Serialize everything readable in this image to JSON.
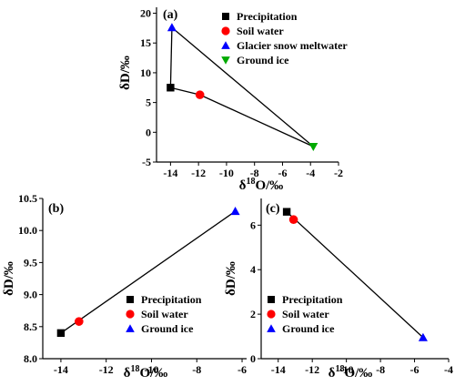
{
  "chart_data": [
    {
      "panel_label": "(a)",
      "type": "scatter",
      "xlabel_main": "δ",
      "xlabel_sup": "18",
      "xlabel_rest": "O/‰",
      "ylabel": "δD/‰",
      "xlim": [
        -15,
        -2
      ],
      "ylim": [
        -5,
        21
      ],
      "xticks": [
        -14,
        -12,
        -10,
        -8,
        -6,
        -4,
        -2
      ],
      "yticks": [
        -5,
        0,
        5,
        10,
        15,
        20
      ],
      "legend_position": "top-right",
      "series": [
        {
          "name": "Precipitation",
          "marker": "square",
          "color": "#000000",
          "x": -14.0,
          "y": 7.5
        },
        {
          "name": "Soil water",
          "marker": "circle",
          "color": "#ff0000",
          "x": -11.9,
          "y": 6.3
        },
        {
          "name": "Glacier snow meltwater",
          "marker": "triangle-up",
          "color": "#0000ff",
          "x": -13.9,
          "y": 17.6
        },
        {
          "name": "Ground ice",
          "marker": "triangle-down",
          "color": "#00aa00",
          "x": -3.8,
          "y": -2.4
        }
      ],
      "lines": [
        [
          [
            -14.0,
            7.5
          ],
          [
            -13.9,
            17.6
          ]
        ],
        [
          [
            -13.9,
            17.6
          ],
          [
            -3.8,
            -2.4
          ]
        ],
        [
          [
            -14.0,
            7.5
          ],
          [
            -11.9,
            6.3
          ],
          [
            -3.8,
            -2.4
          ]
        ]
      ]
    },
    {
      "panel_label": "(b)",
      "type": "scatter",
      "xlabel_main": "δ",
      "xlabel_sup": "18",
      "xlabel_rest": "O/‰",
      "ylabel": "δD/‰",
      "xlim": [
        -14.8,
        -5.8
      ],
      "ylim": [
        8.0,
        10.5
      ],
      "xticks": [
        -14,
        -12,
        -10,
        -8,
        -6
      ],
      "yticks": [
        8.0,
        8.5,
        9.0,
        9.5,
        10.0,
        10.5
      ],
      "ytick_decimals": 1,
      "legend_position": "bottom-right",
      "series": [
        {
          "name": "Precipitation",
          "marker": "square",
          "color": "#000000",
          "x": -14.0,
          "y": 8.4
        },
        {
          "name": "Soil water",
          "marker": "circle",
          "color": "#ff0000",
          "x": -13.2,
          "y": 8.58
        },
        {
          "name": "Ground ice",
          "marker": "triangle-up",
          "color": "#0000ff",
          "x": -6.3,
          "y": 10.3
        }
      ],
      "lines": [
        [
          [
            -14.0,
            8.4
          ],
          [
            -6.3,
            10.3
          ]
        ]
      ]
    },
    {
      "panel_label": "(c)",
      "type": "scatter",
      "xlabel_main": "δ",
      "xlabel_sup": "18",
      "xlabel_rest": "O/‰",
      "ylabel": "δD/‰",
      "xlim": [
        -15,
        -4
      ],
      "ylim": [
        0,
        7.2
      ],
      "xticks": [
        -14,
        -12,
        -10,
        -8,
        -6,
        -4
      ],
      "yticks": [
        0,
        2,
        4,
        6
      ],
      "legend_position": "bottom-left",
      "series": [
        {
          "name": "Precipitation",
          "marker": "square",
          "color": "#000000",
          "x": -13.5,
          "y": 6.6
        },
        {
          "name": "Soil water",
          "marker": "circle",
          "color": "#ff0000",
          "x": -13.1,
          "y": 6.25
        },
        {
          "name": "Ground ice",
          "marker": "triangle-up",
          "color": "#0000ff",
          "x": -5.5,
          "y": 0.95
        }
      ],
      "lines": [
        [
          [
            -13.5,
            6.6
          ],
          [
            -5.5,
            0.95
          ]
        ]
      ]
    }
  ]
}
